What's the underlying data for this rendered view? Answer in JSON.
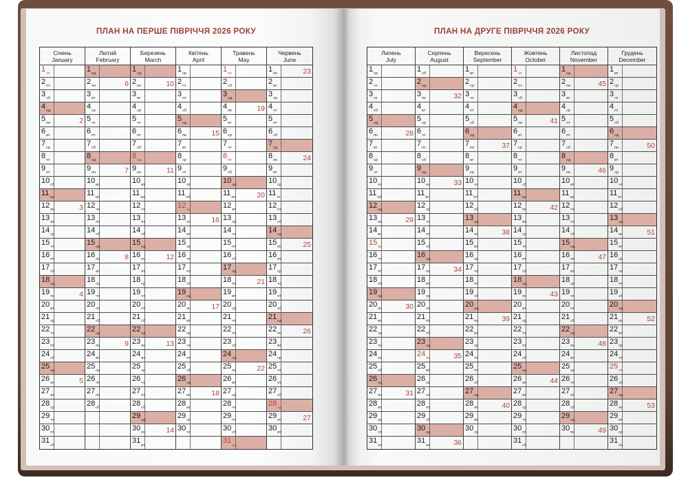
{
  "book": {
    "type": "planner-spread",
    "year": "2026",
    "colors": {
      "cover_brown": "#5f4335",
      "page_edge": "#d2c0b8",
      "title_red": "#9d3e39",
      "accent_red": "#ac423b",
      "sunday_highlight": "#dcafa6",
      "grid_line": "#3c3c3c"
    }
  },
  "weekday_labels": [
    "пн",
    "вт",
    "ср",
    "чт",
    "пт",
    "сб",
    "нд"
  ],
  "pages": [
    {
      "title": "ПЛАН НА ПЕРШЕ ПІВРІЧЧЯ 2026 РОКУ",
      "months": [
        {
          "name_uk": "Січень",
          "name_en": "January",
          "days": 31,
          "first_weekday": 3,
          "holidays": [
            1
          ],
          "weeks": {
            "5": 2,
            "12": 3,
            "19": 4,
            "26": 5
          }
        },
        {
          "name_uk": "Лютий",
          "name_en": "February",
          "days": 28,
          "first_weekday": 6,
          "holidays": [],
          "weeks": {
            "2": 6,
            "9": 7,
            "16": 8,
            "23": 9
          }
        },
        {
          "name_uk": "Березень",
          "name_en": "March",
          "days": 31,
          "first_weekday": 6,
          "holidays": [
            8
          ],
          "weeks": {
            "2": 10,
            "9": 11,
            "16": 12,
            "23": 13,
            "30": 14
          }
        },
        {
          "name_uk": "Квітень",
          "name_en": "April",
          "days": 30,
          "first_weekday": 2,
          "holidays": [
            12
          ],
          "weeks": {
            "6": 15,
            "13": 16,
            "20": 17,
            "27": 18
          }
        },
        {
          "name_uk": "Травень",
          "name_en": "May",
          "days": 31,
          "first_weekday": 4,
          "holidays": [
            1,
            8,
            31
          ],
          "weeks": {
            "4": 19,
            "11": 20,
            "18": 21,
            "25": 22
          }
        },
        {
          "name_uk": "Червень",
          "name_en": "June",
          "days": 30,
          "first_weekday": 0,
          "holidays": [
            28
          ],
          "weeks": {
            "1": 23,
            "8": 24,
            "15": 25,
            "22": 26,
            "29": 27
          }
        }
      ]
    },
    {
      "title": "ПЛАН НА ДРУГЕ ПІВРІЧЧЯ 2026 РОКУ",
      "months": [
        {
          "name_uk": "Липень",
          "name_en": "July",
          "days": 31,
          "first_weekday": 2,
          "holidays": [
            15
          ],
          "weeks": {
            "6": 28,
            "13": 29,
            "20": 30,
            "27": 31
          }
        },
        {
          "name_uk": "Серпень",
          "name_en": "August",
          "days": 31,
          "first_weekday": 5,
          "holidays": [
            24
          ],
          "weeks": {
            "3": 32,
            "10": 33,
            "17": 34,
            "24": 35,
            "31": 36
          }
        },
        {
          "name_uk": "Вересень",
          "name_en": "September",
          "days": 30,
          "first_weekday": 1,
          "holidays": [],
          "weeks": {
            "7": 37,
            "14": 38,
            "21": 39,
            "28": 40
          }
        },
        {
          "name_uk": "Жовтень",
          "name_en": "October",
          "days": 31,
          "first_weekday": 3,
          "holidays": [
            1
          ],
          "weeks": {
            "5": 41,
            "12": 42,
            "19": 43,
            "26": 44
          }
        },
        {
          "name_uk": "Листопад",
          "name_en": "November",
          "days": 30,
          "first_weekday": 6,
          "holidays": [],
          "weeks": {
            "2": 45,
            "9": 46,
            "16": 47,
            "23": 48,
            "30": 49
          }
        },
        {
          "name_uk": "Грудень",
          "name_en": "December",
          "days": 31,
          "first_weekday": 1,
          "holidays": [
            25
          ],
          "weeks": {
            "7": 50,
            "14": 51,
            "21": 52,
            "28": 53
          }
        }
      ]
    }
  ]
}
